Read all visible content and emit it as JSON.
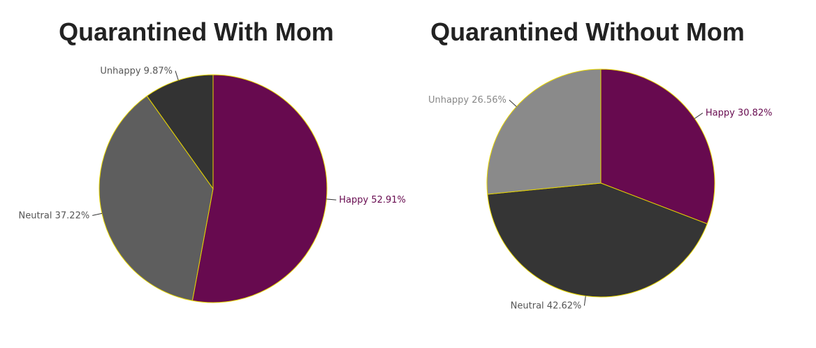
{
  "chart_data": [
    {
      "type": "pie",
      "title": "Quarantined With Mom",
      "categories": [
        "Happy",
        "Neutral",
        "Unhappy"
      ],
      "values": [
        52.91,
        37.22,
        9.87
      ],
      "value_labels": [
        "52.91%",
        "37.22%",
        "9.87%"
      ],
      "colors": [
        "#670a4f",
        "#5e5e5e",
        "#333333"
      ]
    },
    {
      "type": "pie",
      "title": "Quarantined Without Mom",
      "categories": [
        "Happy",
        "Neutral",
        "Unhappy"
      ],
      "values": [
        30.82,
        42.62,
        26.56
      ],
      "value_labels": [
        "30.82%",
        "42.62%",
        "26.56%"
      ],
      "colors": [
        "#670a4f",
        "#353535",
        "#8a8a8a"
      ]
    }
  ]
}
